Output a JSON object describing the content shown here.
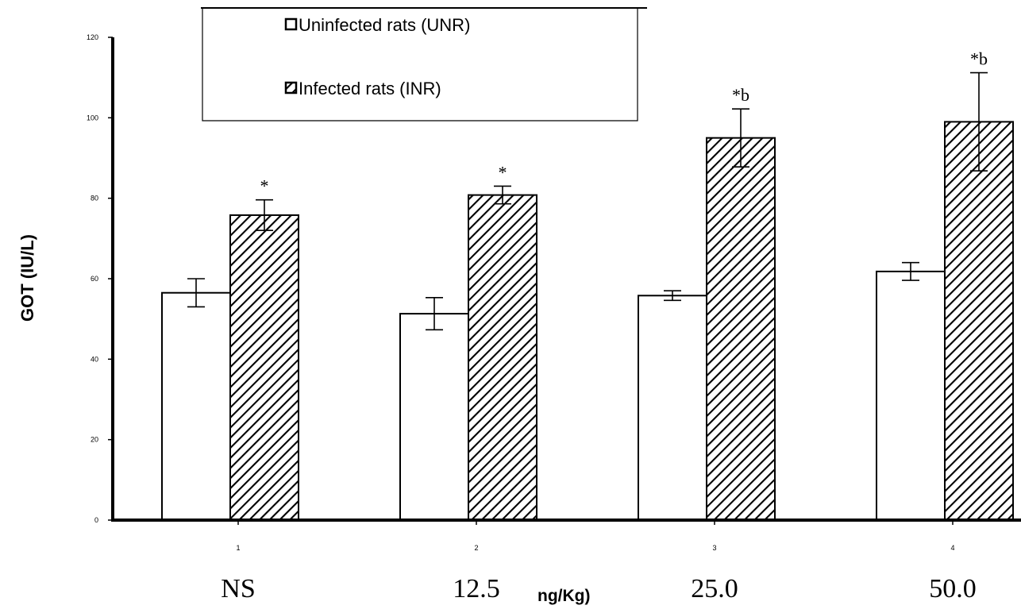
{
  "chart_data": {
    "type": "bar",
    "title": "",
    "ylabel": "GOT (IU/L)",
    "xlabel": "ng/Kg)",
    "ylim": [
      0,
      120
    ],
    "yticks": [
      0,
      20,
      40,
      60,
      80,
      100,
      120
    ],
    "categories": [
      "1",
      "2",
      "3",
      "4"
    ],
    "category_labels": [
      "NS",
      "12.5",
      "25.0",
      "50.0"
    ],
    "series": [
      {
        "name": "Uninfected rats (UNR)",
        "fill": "none",
        "values": [
          56.5,
          51.3,
          55.8,
          61.8
        ],
        "errors": [
          3.5,
          4.0,
          1.2,
          2.2
        ],
        "annotations": [
          "",
          "",
          "",
          ""
        ]
      },
      {
        "name": "Infected rats (INR)",
        "fill": "hatched",
        "values": [
          75.8,
          80.8,
          95.0,
          99.0
        ],
        "errors": [
          3.8,
          2.2,
          7.2,
          12.2
        ],
        "annotations": [
          "*",
          "*",
          "*b",
          "*b"
        ]
      }
    ],
    "legend": {
      "position": "top-center"
    },
    "grid": false,
    "colors": {
      "bar_stroke": "#000000",
      "bar_fill_uninfected": "#ffffff",
      "hatch": "#000000"
    }
  }
}
